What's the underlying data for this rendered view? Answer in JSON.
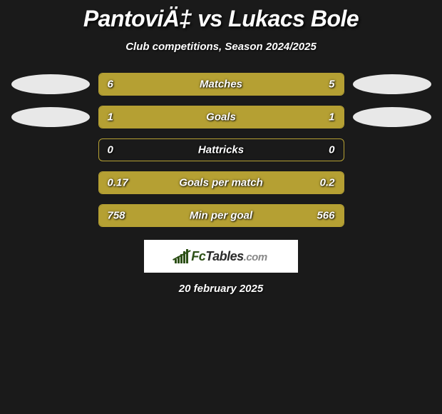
{
  "title": "PantoviÄ‡ vs Lukacs Bole",
  "subtitle": "Club competitions, Season 2024/2025",
  "date": "20 february 2025",
  "background_color": "#1a1a1a",
  "bar_color": "#b5a033",
  "text_color": "#ffffff",
  "oval_color": "#e8e8e8",
  "logo_bg": "#ffffff",
  "logo_fc_color": "#2d5016",
  "logo_tables_color": "#2a2a2a",
  "logo_com_color": "#888888",
  "rows": [
    {
      "label": "Matches",
      "left_val": "6",
      "right_val": "5",
      "left_pct": 54.5,
      "right_pct": 45.5,
      "has_ovals": true
    },
    {
      "label": "Goals",
      "left_val": "1",
      "right_val": "1",
      "left_pct": 50,
      "right_pct": 50,
      "has_ovals": true
    },
    {
      "label": "Hattricks",
      "left_val": "0",
      "right_val": "0",
      "left_pct": 0,
      "right_pct": 0,
      "has_ovals": false
    },
    {
      "label": "Goals per match",
      "left_val": "0.17",
      "right_val": "0.2",
      "left_pct": 45.9,
      "right_pct": 54.1,
      "has_ovals": false
    },
    {
      "label": "Min per goal",
      "left_val": "758",
      "right_val": "566",
      "left_pct": 57.3,
      "right_pct": 42.7,
      "has_ovals": false
    }
  ],
  "logo": {
    "fc": "Fc",
    "tables": "Tables",
    "com": ".com"
  }
}
